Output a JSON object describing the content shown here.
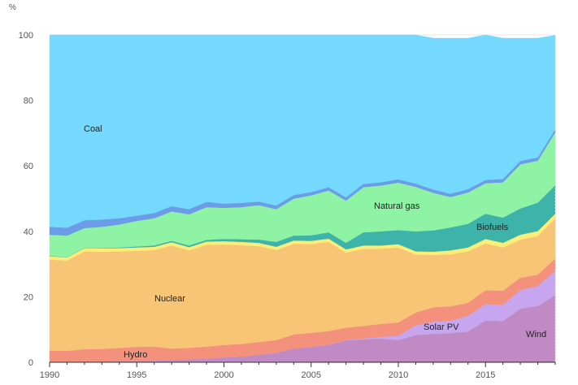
{
  "chart_data": {
    "type": "area",
    "stacked": true,
    "unit": "%",
    "ylim": [
      0,
      100
    ],
    "yticks": [
      0,
      20,
      40,
      60,
      80,
      100
    ],
    "xlim": [
      1990,
      2019
    ],
    "xticks": [
      1990,
      1995,
      2000,
      2005,
      2010,
      2015
    ],
    "x": [
      1990,
      1991,
      1992,
      1993,
      1994,
      1995,
      1996,
      1997,
      1998,
      1999,
      2000,
      2001,
      2002,
      2003,
      2004,
      2005,
      2006,
      2007,
      2008,
      2009,
      2010,
      2011,
      2012,
      2013,
      2014,
      2015,
      2016,
      2017,
      2018,
      2019
    ],
    "grid": true,
    "legend": "inline labels",
    "series": [
      {
        "name": "",
        "color": "#9c7a97",
        "values": [
          0.1,
          0.1,
          0.1,
          0.1,
          0.1,
          0.1,
          0.1,
          0.1,
          0.1,
          0.1,
          0.1,
          0.1,
          0.1,
          0.2,
          0.2,
          0.2,
          0.3,
          0.3,
          0.3,
          0.3,
          0.3,
          0.3,
          0.3,
          0.3,
          0.3,
          0.3,
          0.3,
          0.3,
          0.3,
          0.3
        ]
      },
      {
        "name": "Wind",
        "color": "#c08ac5",
        "values": [
          0.1,
          0.1,
          0.2,
          0.2,
          0.3,
          0.3,
          0.4,
          0.6,
          0.8,
          1.0,
          1.4,
          1.6,
          2.2,
          2.7,
          4.0,
          4.5,
          5.0,
          6.4,
          6.7,
          6.9,
          6.5,
          8.0,
          8.4,
          8.6,
          9.1,
          12.5,
          12.3,
          16.1,
          16.9,
          20.2
        ]
      },
      {
        "name": "Solar PV",
        "color": "#c7a6ef",
        "values": [
          0,
          0,
          0,
          0,
          0,
          0,
          0,
          0,
          0,
          0,
          0,
          0,
          0,
          0,
          0,
          0,
          0.1,
          0.1,
          0.3,
          0.6,
          1.3,
          3.0,
          3.7,
          3.8,
          4.8,
          5.0,
          5.0,
          5.7,
          6.1,
          7.5
        ]
      },
      {
        "name": "Hydro",
        "color": "#f4917d",
        "values": [
          3.4,
          3.3,
          3.7,
          3.8,
          4.0,
          4.3,
          4.3,
          3.5,
          3.5,
          3.7,
          3.8,
          3.9,
          3.9,
          3.9,
          4.3,
          4.3,
          4.1,
          3.8,
          3.8,
          3.9,
          4.1,
          3.9,
          4.4,
          4.4,
          4.0,
          4.2,
          4.3,
          3.7,
          3.5,
          3.7
        ]
      },
      {
        "name": "Nuclear",
        "color": "#f8c576",
        "values": [
          27.8,
          27.6,
          29.9,
          29.7,
          29.5,
          29.4,
          29.5,
          31.5,
          29.8,
          31.1,
          30.7,
          30.2,
          29.3,
          27.5,
          27.7,
          27.1,
          27.3,
          22.9,
          23.6,
          23.0,
          22.9,
          17.7,
          16.0,
          15.9,
          15.7,
          14.3,
          13.2,
          11.7,
          11.8,
          12.2
        ]
      },
      {
        "name": "",
        "color": "#faee78",
        "values": [
          1.0,
          1.0,
          1.0,
          1.0,
          1.0,
          1.0,
          1.0,
          1.0,
          1.0,
          1.0,
          1.0,
          1.0,
          1.0,
          1.0,
          1.0,
          1.0,
          1.0,
          1.0,
          1.0,
          1.0,
          1.0,
          1.0,
          1.0,
          1.2,
          1.2,
          1.4,
          1.4,
          1.5,
          1.5,
          1.5
        ]
      },
      {
        "name": "Biofuels",
        "color": "#3db3a9",
        "values": [
          0.1,
          0.1,
          0.1,
          0.1,
          0.2,
          0.3,
          0.4,
          0.4,
          0.5,
          0.5,
          0.7,
          0.8,
          1.0,
          1.5,
          1.5,
          1.7,
          1.9,
          2.0,
          4.0,
          4.3,
          4.3,
          6.1,
          6.5,
          7.0,
          7.2,
          7.7,
          7.7,
          8.0,
          8.7,
          8.7
        ]
      },
      {
        "name": "Natural gas",
        "color": "#8ef3a5",
        "values": [
          6.5,
          6.5,
          6.0,
          6.5,
          7.0,
          7.8,
          8.3,
          9.0,
          9.5,
          10.0,
          9.5,
          9.8,
          10.5,
          10.0,
          11.3,
          12.2,
          12.8,
          12.9,
          13.8,
          14.0,
          14.5,
          13.6,
          11.5,
          9.3,
          9.6,
          9.3,
          10.8,
          13.5,
          12.8,
          16.2
        ]
      },
      {
        "name": "",
        "color": "#6c9be8",
        "values": [
          2.4,
          2.4,
          2.4,
          2.2,
          1.9,
          1.6,
          1.6,
          1.6,
          1.6,
          1.6,
          1.3,
          1.3,
          1.1,
          1.1,
          1.1,
          1.0,
          1.0,
          1.0,
          1.0,
          1.0,
          1.0,
          1.0,
          1.0,
          1.0,
          1.0,
          1.0,
          1.0,
          1.0,
          1.0,
          0.9
        ]
      },
      {
        "name": "Coal",
        "color": "#74d9fc",
        "values": [
          58.6,
          58.9,
          56.6,
          56.4,
          56.0,
          55.2,
          54.4,
          52.3,
          53.2,
          51.0,
          51.5,
          51.3,
          51.0,
          52.1,
          48.9,
          48.0,
          46.5,
          49.6,
          45.5,
          45.0,
          44.1,
          45.4,
          46.2,
          47.5,
          46.1,
          44.3,
          43.0,
          37.5,
          36.4,
          28.7
        ]
      }
    ]
  }
}
